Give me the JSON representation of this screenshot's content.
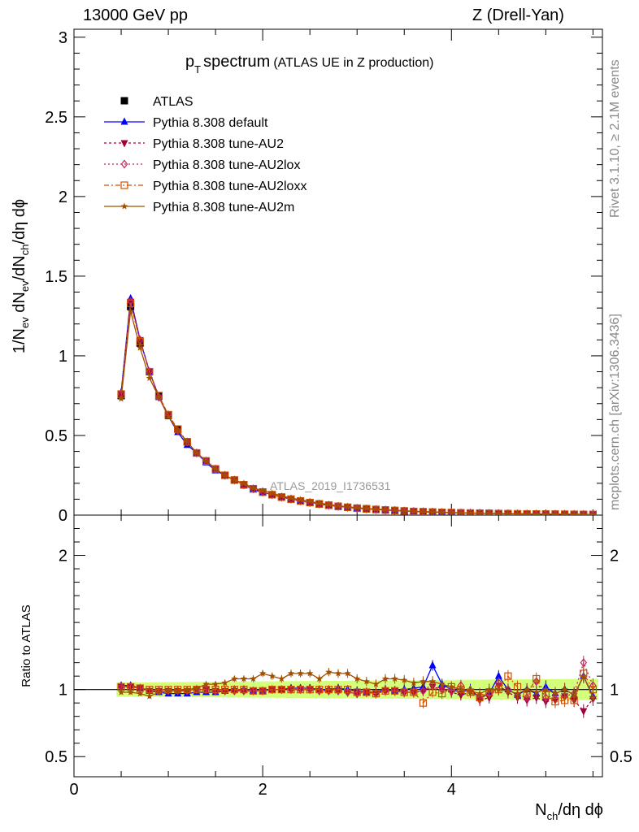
{
  "header": {
    "left": "13000 GeV pp",
    "right": "Z (Drell-Yan)"
  },
  "side_labels": {
    "rivet": "Rivet 3.1.10, ≥ 2.1M events",
    "mcplots": "mcplots.cern.ch [arXiv:1306.3436]"
  },
  "chart_data": [
    {
      "type": "scatter",
      "title": "p_T spectrum",
      "subtitle": "(ATLAS UE in Z production)",
      "watermark": "ATLAS_2019_I1736531",
      "xlabel": "N_ch/dη dϕ",
      "ylabel": "1/N_ev dN_ev/dN_ch/dη dϕ",
      "xlim": [
        0,
        5.6
      ],
      "ylim": [
        0,
        3.05
      ],
      "xticks": [
        0,
        2,
        4
      ],
      "yticks": [
        0,
        0.5,
        1,
        1.5,
        2,
        2.5,
        3
      ],
      "ytick_labels": [
        "0",
        "0.5",
        "1",
        "1.5",
        "2",
        "2.5",
        "3"
      ],
      "legend_position": "top-left",
      "x": [
        0.5,
        0.6,
        0.7,
        0.8,
        0.9,
        1.0,
        1.1,
        1.2,
        1.3,
        1.4,
        1.5,
        1.6,
        1.7,
        1.8,
        1.9,
        2.0,
        2.1,
        2.2,
        2.3,
        2.4,
        2.5,
        2.6,
        2.7,
        2.8,
        2.9,
        3.0,
        3.1,
        3.2,
        3.3,
        3.4,
        3.5,
        3.6,
        3.7,
        3.8,
        3.9,
        4.0,
        4.1,
        4.2,
        4.3,
        4.4,
        4.5,
        4.6,
        4.7,
        4.8,
        4.9,
        5.0,
        5.1,
        5.2,
        5.3,
        5.4,
        5.5
      ],
      "series": [
        {
          "name": "ATLAS",
          "color": "#000000",
          "marker": "square-filled",
          "dash": "none",
          "values": [
            0.75,
            1.31,
            1.08,
            0.9,
            0.75,
            0.63,
            0.54,
            0.46,
            0.39,
            0.34,
            0.29,
            0.25,
            0.22,
            0.19,
            0.165,
            0.145,
            0.128,
            0.113,
            0.1,
            0.089,
            0.079,
            0.07,
            0.062,
            0.055,
            0.049,
            0.044,
            0.04,
            0.036,
            0.032,
            0.029,
            0.026,
            0.023,
            0.021,
            0.019,
            0.017,
            0.016,
            0.014,
            0.013,
            0.012,
            0.011,
            0.01,
            0.009,
            0.008,
            0.0075,
            0.007,
            0.0065,
            0.006,
            0.0055,
            0.005,
            0.0045,
            0.004
          ]
        },
        {
          "name": "Pythia 8.308 default",
          "color": "#0000ff",
          "marker": "triangle-up",
          "dash": "none",
          "values": [
            0.77,
            1.36,
            1.1,
            0.9,
            0.74,
            0.62,
            0.52,
            0.44,
            0.39,
            0.33,
            0.28,
            0.25,
            0.22,
            0.19,
            0.16,
            0.143,
            0.128,
            0.113,
            0.1,
            0.09,
            0.079,
            0.07,
            0.062,
            0.055,
            0.049,
            0.043,
            0.039,
            0.035,
            0.032,
            0.029,
            0.026,
            0.023,
            0.021,
            0.02,
            0.017,
            0.016,
            0.014,
            0.013,
            0.012,
            0.011,
            0.01,
            0.009,
            0.008,
            0.0075,
            0.007,
            0.0065,
            0.006,
            0.0055,
            0.005,
            0.0045,
            0.004
          ]
        },
        {
          "name": "Pythia 8.308 tune-AU2",
          "color": "#a0003c",
          "marker": "triangle-down",
          "dash": "3,3",
          "values": [
            0.76,
            1.34,
            1.1,
            0.9,
            0.74,
            0.63,
            0.53,
            0.46,
            0.39,
            0.34,
            0.29,
            0.25,
            0.22,
            0.19,
            0.165,
            0.145,
            0.128,
            0.113,
            0.1,
            0.089,
            0.079,
            0.07,
            0.062,
            0.055,
            0.049,
            0.043,
            0.039,
            0.035,
            0.032,
            0.029,
            0.026,
            0.023,
            0.021,
            0.019,
            0.017,
            0.016,
            0.014,
            0.013,
            0.012,
            0.011,
            0.01,
            0.009,
            0.008,
            0.0075,
            0.007,
            0.0065,
            0.006,
            0.0055,
            0.005,
            0.0045,
            0.004
          ]
        },
        {
          "name": "Pythia 8.308 tune-AU2lox",
          "color": "#c0245c",
          "marker": "diamond-open",
          "dash": "2,3",
          "values": [
            0.76,
            1.34,
            1.1,
            0.9,
            0.74,
            0.63,
            0.53,
            0.46,
            0.39,
            0.34,
            0.29,
            0.25,
            0.22,
            0.19,
            0.165,
            0.145,
            0.128,
            0.113,
            0.1,
            0.089,
            0.079,
            0.07,
            0.062,
            0.055,
            0.049,
            0.043,
            0.039,
            0.035,
            0.032,
            0.029,
            0.026,
            0.023,
            0.021,
            0.019,
            0.017,
            0.016,
            0.014,
            0.013,
            0.012,
            0.011,
            0.01,
            0.009,
            0.008,
            0.0075,
            0.007,
            0.0065,
            0.006,
            0.0055,
            0.005,
            0.0045,
            0.004
          ]
        },
        {
          "name": "Pythia 8.308 tune-AU2loxx",
          "color": "#d05000",
          "marker": "square-open",
          "dash": "6,3,2,3",
          "values": [
            0.76,
            1.33,
            1.09,
            0.9,
            0.75,
            0.63,
            0.54,
            0.46,
            0.39,
            0.34,
            0.29,
            0.25,
            0.22,
            0.19,
            0.165,
            0.144,
            0.128,
            0.113,
            0.1,
            0.089,
            0.079,
            0.07,
            0.062,
            0.055,
            0.049,
            0.043,
            0.039,
            0.035,
            0.032,
            0.029,
            0.026,
            0.023,
            0.021,
            0.019,
            0.017,
            0.016,
            0.014,
            0.013,
            0.012,
            0.011,
            0.01,
            0.009,
            0.008,
            0.0075,
            0.007,
            0.0065,
            0.006,
            0.0055,
            0.005,
            0.0045,
            0.004
          ]
        },
        {
          "name": "Pythia 8.308 tune-AU2m",
          "color": "#a05000",
          "marker": "star",
          "dash": "none",
          "values": [
            0.73,
            1.28,
            1.05,
            0.86,
            0.74,
            0.62,
            0.53,
            0.46,
            0.39,
            0.34,
            0.29,
            0.25,
            0.22,
            0.2,
            0.17,
            0.155,
            0.138,
            0.12,
            0.108,
            0.096,
            0.086,
            0.075,
            0.067,
            0.059,
            0.052,
            0.047,
            0.042,
            0.038,
            0.034,
            0.031,
            0.027,
            0.024,
            0.022,
            0.02,
            0.018,
            0.016,
            0.014,
            0.013,
            0.012,
            0.011,
            0.01,
            0.009,
            0.008,
            0.0075,
            0.007,
            0.0065,
            0.006,
            0.0055,
            0.005,
            0.0045,
            0.004
          ]
        }
      ]
    },
    {
      "type": "scatter",
      "ylabel": "Ratio to ATLAS",
      "xlabel": "N_ch/dη dϕ",
      "xlim": [
        0,
        5.6
      ],
      "ylim": [
        0.35,
        2.3
      ],
      "xticks": [
        0,
        2,
        4
      ],
      "yticks": [
        0.5,
        1,
        2
      ],
      "ytick_labels": [
        "0.5",
        "1",
        "2"
      ],
      "x": [
        0.5,
        0.6,
        0.7,
        0.8,
        0.9,
        1.0,
        1.1,
        1.2,
        1.3,
        1.4,
        1.5,
        1.6,
        1.7,
        1.8,
        1.9,
        2.0,
        2.1,
        2.2,
        2.3,
        2.4,
        2.5,
        2.6,
        2.7,
        2.8,
        2.9,
        3.0,
        3.1,
        3.2,
        3.3,
        3.4,
        3.5,
        3.6,
        3.7,
        3.8,
        3.9,
        4.0,
        4.1,
        4.2,
        4.3,
        4.4,
        4.5,
        4.6,
        4.7,
        4.8,
        4.9,
        5.0,
        5.1,
        5.2,
        5.3,
        5.4,
        5.5
      ],
      "band_color": "#ccff66",
      "series": [
        {
          "name": "Pythia 8.308 default",
          "color": "#0000ff",
          "marker": "triangle-up",
          "dash": "none",
          "values": [
            1.03,
            1.03,
            1.01,
            0.99,
            0.98,
            0.97,
            0.97,
            0.97,
            0.98,
            0.98,
            0.98,
            0.99,
            1.0,
            1.0,
            0.99,
            0.99,
            1.0,
            1.0,
            1.01,
            1.01,
            1.01,
            1.0,
            1.0,
            1.01,
            1.0,
            0.99,
            0.98,
            0.98,
            1.0,
            0.99,
            1.0,
            1.01,
            1.02,
            1.18,
            1.04,
            1.0,
            0.98,
            1.0,
            0.94,
            0.97,
            1.1,
            1.0,
            0.96,
            1.0,
            0.97,
            1.02,
            0.97,
            1.0,
            0.96,
            1.1,
            0.95
          ]
        },
        {
          "name": "Pythia 8.308 tune-AU2",
          "color": "#a0003c",
          "marker": "triangle-down",
          "dash": "3,3",
          "values": [
            1.02,
            1.02,
            1.01,
            0.99,
            0.99,
            0.99,
            0.99,
            0.99,
            1.0,
            1.0,
            0.99,
            0.99,
            0.99,
            0.99,
            0.99,
            0.99,
            1.0,
            1.0,
            1.0,
            1.0,
            1.0,
            0.99,
            0.99,
            0.99,
            0.98,
            0.97,
            0.98,
            0.97,
            0.99,
            0.99,
            0.98,
            0.98,
            0.99,
            1.02,
            1.0,
            0.98,
            0.96,
            0.98,
            0.92,
            0.94,
            1.03,
            0.98,
            0.94,
            0.92,
            0.94,
            0.91,
            0.92,
            0.95,
            0.92,
            0.84,
            0.93
          ]
        },
        {
          "name": "Pythia 8.308 tune-AU2lox",
          "color": "#c0245c",
          "marker": "diamond-open",
          "dash": "2,3",
          "values": [
            1.02,
            1.02,
            1.01,
            0.99,
            0.99,
            0.99,
            0.99,
            0.99,
            1.0,
            1.0,
            0.99,
            0.99,
            0.99,
            0.99,
            0.99,
            0.99,
            1.0,
            1.0,
            1.0,
            1.0,
            1.0,
            0.99,
            0.99,
            0.99,
            0.98,
            0.97,
            0.98,
            0.97,
            0.99,
            0.99,
            0.98,
            0.98,
            0.99,
            1.04,
            1.0,
            0.99,
            1.03,
            0.99,
            0.93,
            0.97,
            1.05,
            1.0,
            0.96,
            0.94,
            1.06,
            0.94,
            0.96,
            0.95,
            0.97,
            1.2,
            1.03
          ]
        },
        {
          "name": "Pythia 8.308 tune-AU2loxx",
          "color": "#d05000",
          "marker": "square-open",
          "dash": "6,3,2,3",
          "values": [
            1.02,
            1.02,
            1.01,
            1.0,
            1.0,
            1.0,
            1.0,
            1.0,
            1.0,
            1.0,
            1.0,
            1.0,
            1.0,
            1.0,
            0.99,
            0.99,
            1.0,
            1.0,
            1.0,
            1.0,
            1.0,
            1.0,
            1.0,
            1.0,
            1.0,
            0.98,
            0.98,
            0.97,
            0.99,
            0.99,
            0.98,
            0.98,
            0.9,
            0.98,
            0.97,
            1.02,
            1.0,
            0.98,
            0.94,
            0.98,
            1.0,
            1.1,
            1.02,
            0.97,
            1.08,
            0.96,
            0.91,
            0.92,
            0.92,
            1.12,
            1.0
          ]
        },
        {
          "name": "Pythia 8.308 tune-AU2m",
          "color": "#a05000",
          "marker": "star",
          "dash": "none",
          "values": [
            0.98,
            0.98,
            0.97,
            0.95,
            0.98,
            0.99,
            0.99,
            1.0,
            1.01,
            1.04,
            1.04,
            1.05,
            1.08,
            1.08,
            1.08,
            1.12,
            1.1,
            1.08,
            1.12,
            1.12,
            1.12,
            1.08,
            1.13,
            1.12,
            1.12,
            1.08,
            1.06,
            1.04,
            1.08,
            1.08,
            1.07,
            1.05,
            1.06,
            1.06,
            1.04,
            1.02,
            1.0,
            0.99,
            0.97,
            1.0,
            1.0,
            0.99,
            0.97,
            1.0,
            0.98,
            1.0,
            0.97,
            1.0,
            0.96,
            1.1,
            0.94
          ]
        }
      ]
    }
  ]
}
